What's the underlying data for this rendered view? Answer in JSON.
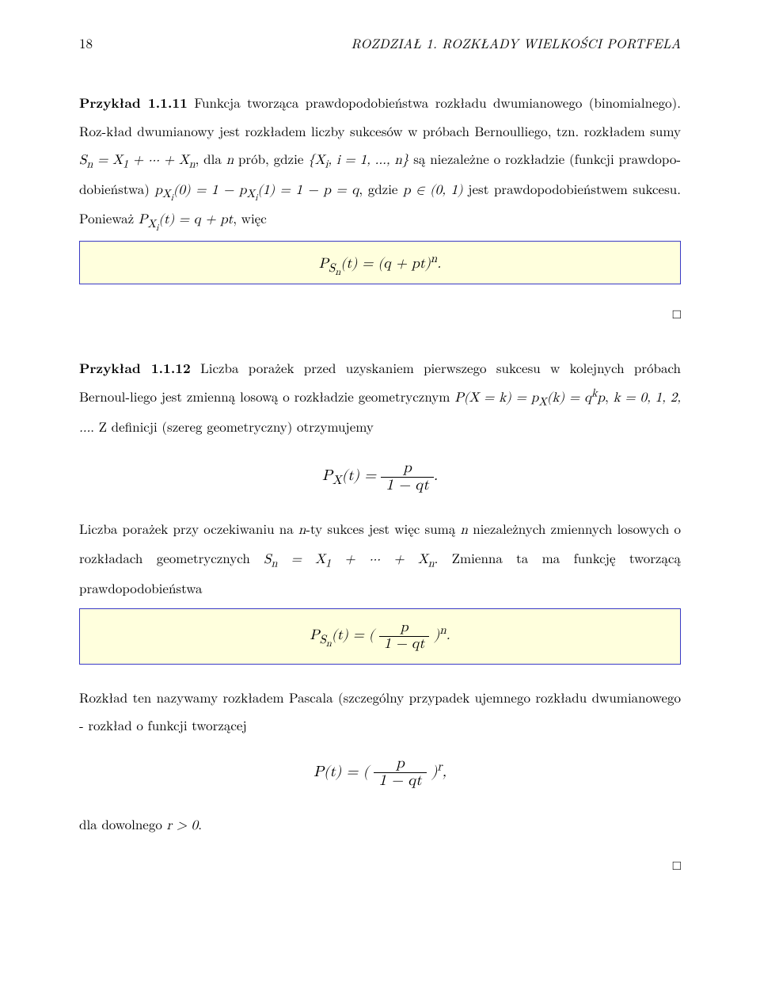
{
  "header": {
    "page_number": "18",
    "running_title": "ROZDZIAŁ 1. ROZKŁADY WIELKOŚCI PORTFELA"
  },
  "box_border_color": "#3939c6",
  "box_bg_color": "#ffffdd",
  "example1": {
    "label": "Przykład 1.1.11",
    "sentence_a": " Funkcja tworząca prawdopodobieństwa rozkładu dwumianowego (binomialnego). Roz-kład dwumianowy jest rozkładem liczby sukcesów w próbach Bernoulliego, tzn. rozkładem sumy ",
    "math_a": "Sₙ = X₁ + ··· + Xₙ",
    "sentence_b": ", dla ",
    "math_b": "n",
    "sentence_c": " prób, gdzie ",
    "math_c": "{Xᵢ, i = 1, …, n}",
    "sentence_d": " są niezależne o rozkładzie (funkcji prawdopo-dobieństwa) ",
    "math_d": "p_{Xᵢ}(0) = 1 − p_{Xᵢ}(1) = 1 − p = q",
    "sentence_e": ", gdzie ",
    "math_e": "p ∈ (0, 1)",
    "sentence_f": " jest prawdopodobieństwem sukcesu. Ponieważ ",
    "math_f": "P_{Xᵢ}(t) = q + pt",
    "sentence_g": ", więc",
    "box_formula": "P_{Sₙ}(t) = (q + pt)ⁿ.",
    "qed": "□"
  },
  "example2": {
    "label": "Przykład 1.1.12",
    "sentence_a": " Liczba porażek przed uzyskaniem pierwszego sukcesu w kolejnych próbach Bernoul-liego jest zmienną losową o rozkładzie geometrycznym ",
    "math_a": "P(X = k) = p_X(k) = qᵏp",
    "sentence_b": ", ",
    "math_b": "k = 0, 1, 2, …",
    "sentence_c": ". Z definicji (szereg geometryczny) otrzymujemy",
    "disp1_lhs": "P_X(t) = ",
    "disp1_num": "p",
    "disp1_den": "1 − qt",
    "disp1_suffix": ".",
    "sentence_d": "Liczba porażek przy oczekiwaniu na ",
    "math_c": "n",
    "sentence_e": "-ty sukces jest więc sumą ",
    "math_d": "n",
    "sentence_f": " niezależnych zmiennych losowych o rozkładach geometrycznych ",
    "math_e": "Sₙ = X₁ + ··· + Xₙ",
    "sentence_g": ". Zmienna ta ma funkcję tworzącą prawdopodobieństwa",
    "box_lhs": "P_{Sₙ}(t) = (",
    "box_num": "p",
    "box_den": "1 − qt",
    "box_suffix": ")ⁿ.",
    "sentence_h": "Rozkład ten nazywamy rozkładem Pascala (szczególny przypadek ujemnego rozkładu dwumianowego - rozkład o funkcji tworzącej",
    "disp2_lhs": "P(t) = (",
    "disp2_num": "p",
    "disp2_den": "1 − qt",
    "disp2_suffix": ")ʳ,",
    "sentence_i": "dla dowolnego ",
    "math_f": "r > 0",
    "sentence_j": ".",
    "qed": "□"
  }
}
